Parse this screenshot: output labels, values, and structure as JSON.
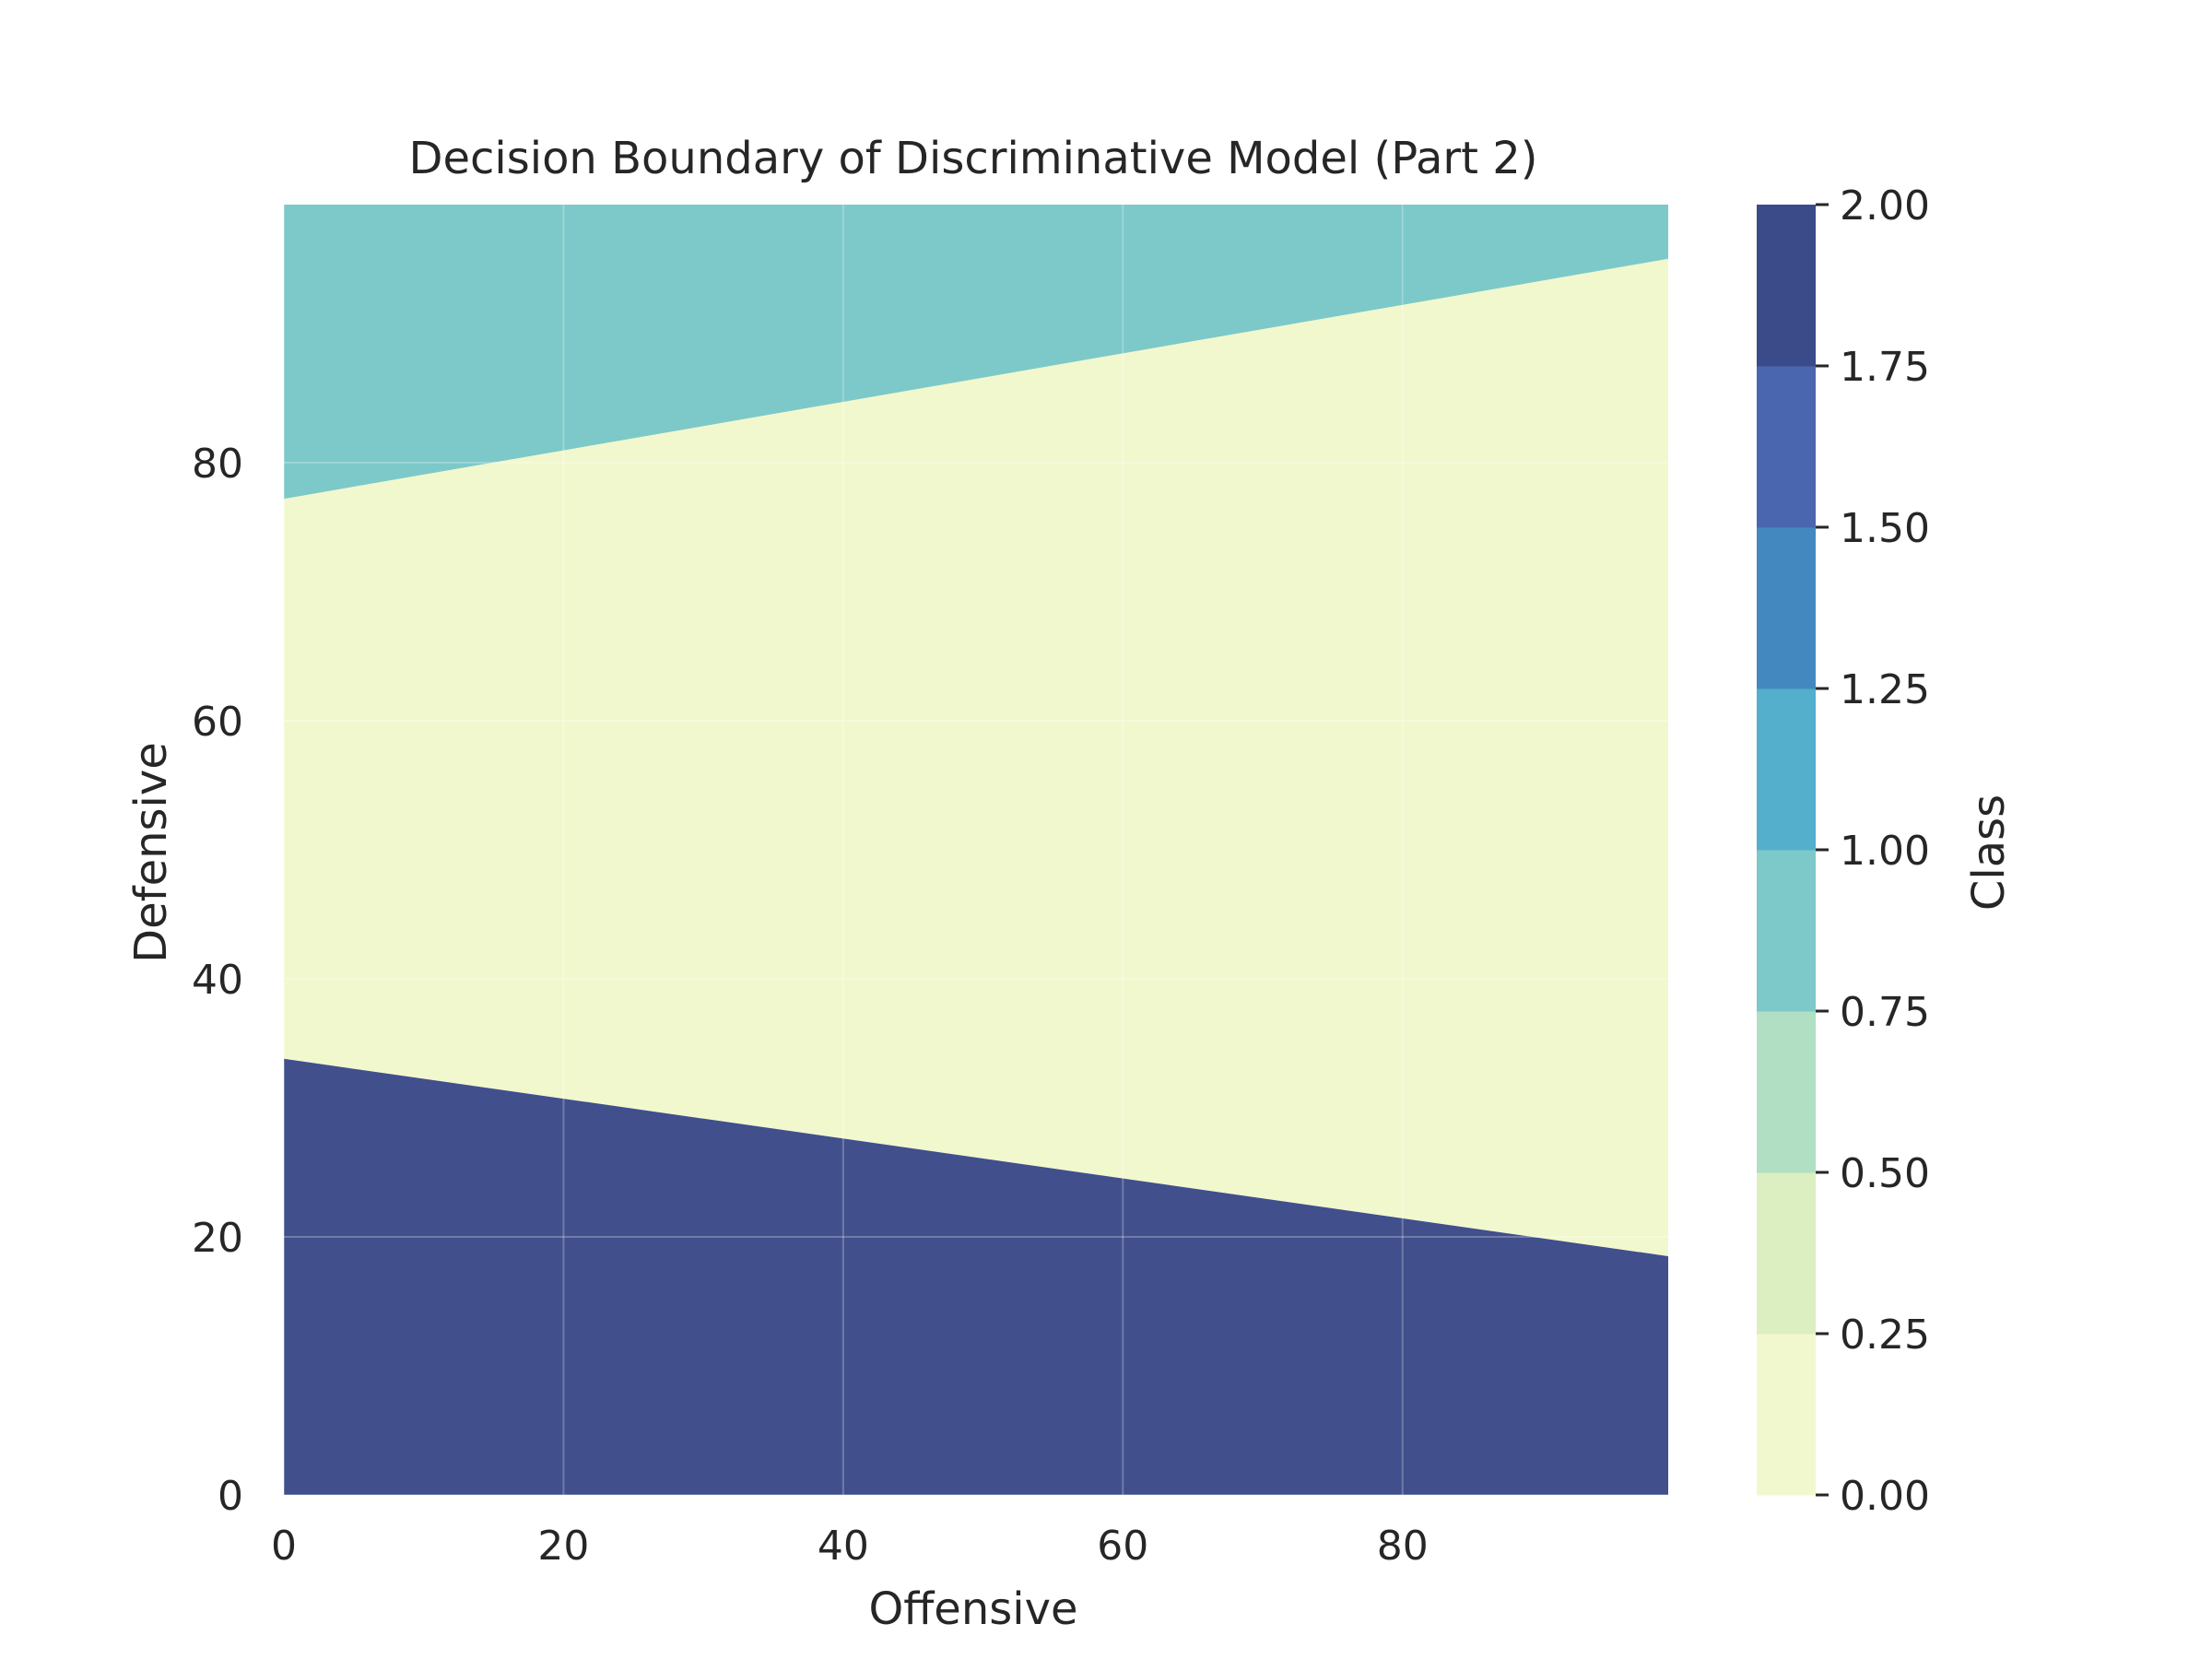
{
  "chart_data": {
    "type": "contour",
    "title": "Decision Boundary of Discriminative Model (Part 2)",
    "xlabel": "Offensive",
    "ylabel": "Defensive",
    "xlim": [
      0,
      99
    ],
    "ylim": [
      0,
      100
    ],
    "xticks": [
      0,
      20,
      40,
      60,
      80
    ],
    "yticks": [
      0,
      20,
      40,
      60,
      80
    ],
    "grid": true,
    "regions": [
      {
        "class": 2,
        "color": "#414f8c",
        "boundary_upper": [
          [
            0,
            33.8
          ],
          [
            99,
            18.5
          ]
        ],
        "fills": "below"
      },
      {
        "class": 0,
        "color": "#f2f8ce",
        "between": "class-2 boundary and class-1 boundary"
      },
      {
        "class": 1,
        "color": "#7dc9c9",
        "boundary_lower": [
          [
            0,
            77.2
          ],
          [
            99,
            95.8
          ]
        ],
        "fills": "above"
      }
    ],
    "colorbar": {
      "label": "Class",
      "ticks": [
        "0.00",
        "0.25",
        "0.50",
        "0.75",
        "1.00",
        "1.25",
        "1.50",
        "1.75",
        "2.00"
      ],
      "levels": [
        0,
        0.25,
        0.5,
        0.75,
        1.0,
        1.25,
        1.5,
        1.75,
        2.0
      ],
      "colors": [
        "#f2f8ce",
        "#dcefc0",
        "#b1dfc3",
        "#7dc9c9",
        "#53afcb",
        "#4389bf",
        "#4a66ae",
        "#3b4b89"
      ]
    }
  }
}
